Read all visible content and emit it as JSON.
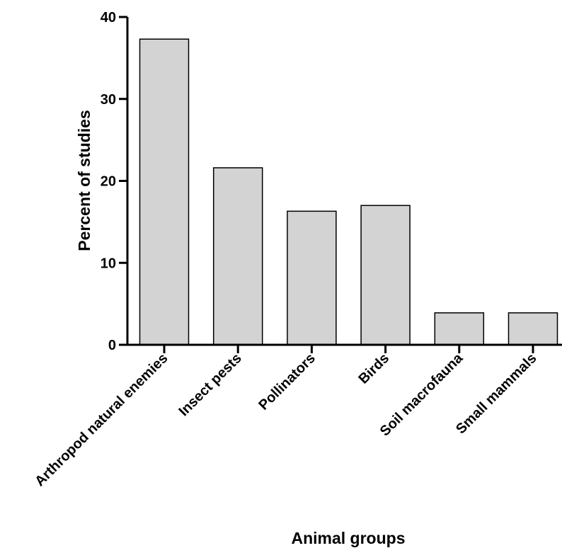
{
  "chart_data": {
    "type": "bar",
    "categories": [
      "Arthropod natural enemies",
      "Insect pests",
      "Pollinators",
      "Birds",
      "Soil macrofauna",
      "Small mammals"
    ],
    "values": [
      37.3,
      21.6,
      16.3,
      17.0,
      3.9,
      3.9
    ],
    "xlabel": "Animal groups",
    "ylabel": "Percent of studies",
    "ylim": [
      0,
      40
    ],
    "yticks": [
      0,
      10,
      20,
      30,
      40
    ],
    "grid": false,
    "bar_color": "#d3d3d3",
    "bar_edge_color": "#000000"
  }
}
